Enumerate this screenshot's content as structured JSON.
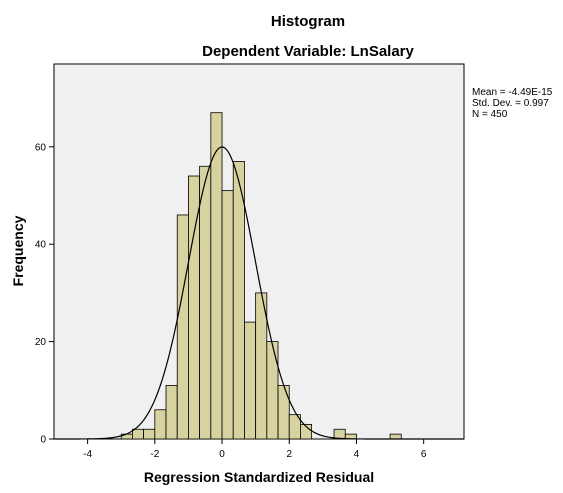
{
  "chart_data": {
    "type": "bar",
    "subtype": "histogram",
    "title": "Histogram",
    "subtitle": "Dependent Variable: LnSalary",
    "xlabel": "Regression Standardized Residual",
    "ylabel": "Frequency",
    "xlim": [
      -5,
      7.2
    ],
    "ylim": [
      0,
      77
    ],
    "xticks": [
      -4,
      -2,
      0,
      2,
      4,
      6
    ],
    "yticks": [
      0,
      20,
      40,
      60
    ],
    "grid": false,
    "bin_width": 0.333,
    "bins": [
      {
        "x0": -3.0,
        "count": 1
      },
      {
        "x0": -2.667,
        "count": 2
      },
      {
        "x0": -2.333,
        "count": 2
      },
      {
        "x0": -2.0,
        "count": 6
      },
      {
        "x0": -1.667,
        "count": 11
      },
      {
        "x0": -1.333,
        "count": 46
      },
      {
        "x0": -1.0,
        "count": 54
      },
      {
        "x0": -0.667,
        "count": 56
      },
      {
        "x0": -0.333,
        "count": 67
      },
      {
        "x0": 0.0,
        "count": 51
      },
      {
        "x0": 0.333,
        "count": 57
      },
      {
        "x0": 0.667,
        "count": 24
      },
      {
        "x0": 1.0,
        "count": 30
      },
      {
        "x0": 1.333,
        "count": 20
      },
      {
        "x0": 1.667,
        "count": 11
      },
      {
        "x0": 2.0,
        "count": 5
      },
      {
        "x0": 2.333,
        "count": 3
      },
      {
        "x0": 3.333,
        "count": 2
      },
      {
        "x0": 3.667,
        "count": 1
      },
      {
        "x0": 5.0,
        "count": 1
      }
    ],
    "normal_curve": {
      "mean": 0,
      "sd": 0.997,
      "n": 450
    },
    "stats": {
      "mean": "Mean = -4.49E-15",
      "sd": "Std. Dev. = 0.997",
      "n": "N = 450"
    },
    "colors": {
      "bar_fill": "#d7d3a0",
      "bar_stroke": "#000000",
      "plot_bg": "#f0f0f0",
      "curve": "#000000"
    }
  }
}
